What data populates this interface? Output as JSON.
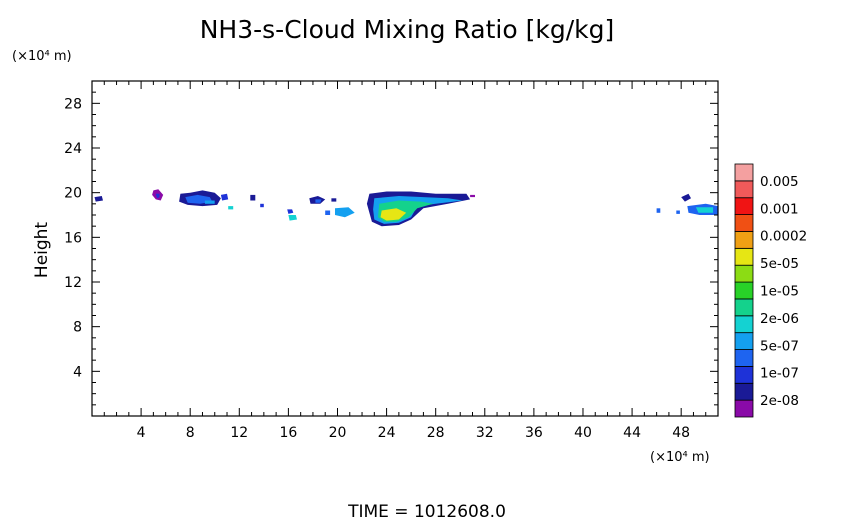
{
  "chart_data": {
    "type": "heatmap",
    "title": "NH3-s-Cloud Mixing Ratio [kg/kg]",
    "xlabel": "",
    "x_unit": "(×10⁴ m)",
    "ylabel": "Height",
    "y_unit": "(×10⁴ m)",
    "xlim": [
      0,
      51
    ],
    "ylim": [
      0,
      30
    ],
    "x_ticks": [
      4,
      8,
      12,
      16,
      20,
      24,
      28,
      32,
      36,
      40,
      44,
      48
    ],
    "y_ticks": [
      4,
      8,
      12,
      16,
      20,
      24,
      28
    ],
    "footer": "TIME =  1012608.0",
    "legend": {
      "position": "right",
      "colors": [
        "#8a0aa8",
        "#1a1a96",
        "#1e32d8",
        "#1e64f0",
        "#14a0f0",
        "#14d2d2",
        "#14d28c",
        "#28d228",
        "#8cdc14",
        "#e6e614",
        "#f0a014",
        "#f05014",
        "#f01414",
        "#f05a5a",
        "#f4a0a0"
      ],
      "labels": [
        "2e-08",
        "1e-07",
        "5e-07",
        "2e-06",
        "1e-05",
        "5e-05",
        "0.0002",
        "0.001",
        "0.005"
      ]
    },
    "regions": [
      {
        "points": [
          [
            0.2,
            19.6
          ],
          [
            0.8,
            19.7
          ],
          [
            0.9,
            19.3
          ],
          [
            0.3,
            19.2
          ]
        ],
        "level": 1
      },
      {
        "points": [
          [
            5.0,
            20.2
          ],
          [
            5.4,
            20.3
          ],
          [
            5.8,
            19.8
          ],
          [
            5.6,
            19.3
          ],
          [
            5.2,
            19.4
          ],
          [
            4.9,
            19.8
          ]
        ],
        "level": 0
      },
      {
        "points": [
          [
            5.2,
            19.9
          ],
          [
            5.5,
            19.9
          ],
          [
            5.5,
            19.6
          ],
          [
            5.3,
            19.5
          ]
        ],
        "level": 2
      },
      {
        "points": [
          [
            7.2,
            19.9
          ],
          [
            8.0,
            20.0
          ],
          [
            9.0,
            20.2
          ],
          [
            10.0,
            20.0
          ],
          [
            10.5,
            19.5
          ],
          [
            10.2,
            18.9
          ],
          [
            9.0,
            18.8
          ],
          [
            7.8,
            18.9
          ],
          [
            7.1,
            19.2
          ]
        ],
        "level": 1
      },
      {
        "points": [
          [
            7.6,
            19.6
          ],
          [
            8.6,
            19.8
          ],
          [
            9.6,
            19.6
          ],
          [
            9.8,
            19.2
          ],
          [
            8.8,
            19.0
          ],
          [
            7.8,
            19.1
          ]
        ],
        "level": 3
      },
      {
        "points": [
          [
            9.2,
            19.3
          ],
          [
            10.0,
            19.3
          ],
          [
            10.0,
            19.0
          ],
          [
            9.2,
            19.0
          ]
        ],
        "level": 4
      },
      {
        "points": [
          [
            10.5,
            19.8
          ],
          [
            11.0,
            19.9
          ],
          [
            11.1,
            19.4
          ],
          [
            10.6,
            19.3
          ]
        ],
        "level": 2
      },
      {
        "points": [
          [
            11.1,
            18.8
          ],
          [
            11.5,
            18.8
          ],
          [
            11.5,
            18.5
          ],
          [
            11.1,
            18.5
          ]
        ],
        "level": 5
      },
      {
        "points": [
          [
            12.9,
            19.8
          ],
          [
            13.3,
            19.8
          ],
          [
            13.3,
            19.3
          ],
          [
            12.9,
            19.3
          ]
        ],
        "level": 1
      },
      {
        "points": [
          [
            13.7,
            19.0
          ],
          [
            14.0,
            19.0
          ],
          [
            14.0,
            18.7
          ],
          [
            13.7,
            18.7
          ]
        ],
        "level": 2
      },
      {
        "points": [
          [
            15.9,
            18.5
          ],
          [
            16.3,
            18.5
          ],
          [
            16.4,
            18.2
          ],
          [
            16.0,
            18.1
          ]
        ],
        "level": 2
      },
      {
        "points": [
          [
            16.0,
            18.0
          ],
          [
            16.6,
            18.0
          ],
          [
            16.7,
            17.6
          ],
          [
            16.1,
            17.5
          ]
        ],
        "level": 5
      },
      {
        "points": [
          [
            17.7,
            19.5
          ],
          [
            18.4,
            19.7
          ],
          [
            19.0,
            19.4
          ],
          [
            18.6,
            19.0
          ],
          [
            17.8,
            19.0
          ]
        ],
        "level": 1
      },
      {
        "points": [
          [
            18.2,
            19.4
          ],
          [
            18.7,
            19.4
          ],
          [
            18.6,
            19.1
          ],
          [
            18.2,
            19.1
          ]
        ],
        "level": 3
      },
      {
        "points": [
          [
            19.5,
            19.5
          ],
          [
            19.9,
            19.5
          ],
          [
            19.9,
            19.2
          ],
          [
            19.5,
            19.2
          ]
        ],
        "level": 1
      },
      {
        "points": [
          [
            19.8,
            18.6
          ],
          [
            20.9,
            18.7
          ],
          [
            21.4,
            18.2
          ],
          [
            20.6,
            17.8
          ],
          [
            19.8,
            18.0
          ]
        ],
        "level": 4
      },
      {
        "points": [
          [
            19.0,
            18.4
          ],
          [
            19.4,
            18.4
          ],
          [
            19.4,
            18.0
          ],
          [
            19.0,
            18.0
          ]
        ],
        "level": 3
      },
      {
        "points": [
          [
            22.6,
            19.9
          ],
          [
            24.0,
            20.1
          ],
          [
            26.0,
            20.1
          ],
          [
            28.0,
            19.9
          ],
          [
            30.5,
            19.9
          ],
          [
            30.8,
            19.4
          ],
          [
            29.0,
            19.0
          ],
          [
            27.0,
            18.6
          ],
          [
            26.0,
            17.6
          ],
          [
            25.0,
            17.1
          ],
          [
            23.6,
            17.0
          ],
          [
            22.8,
            17.4
          ],
          [
            22.6,
            18.2
          ],
          [
            22.4,
            19.0
          ]
        ],
        "level": 1
      },
      {
        "points": [
          [
            23.0,
            19.5
          ],
          [
            25.0,
            19.7
          ],
          [
            27.0,
            19.6
          ],
          [
            29.0,
            19.5
          ],
          [
            30.2,
            19.3
          ],
          [
            28.0,
            19.0
          ],
          [
            26.5,
            18.8
          ],
          [
            26.0,
            17.8
          ],
          [
            25.0,
            17.3
          ],
          [
            23.8,
            17.2
          ],
          [
            23.0,
            17.6
          ],
          [
            22.9,
            18.5
          ]
        ],
        "level": 4
      },
      {
        "points": [
          [
            23.4,
            19.0
          ],
          [
            25.0,
            19.3
          ],
          [
            26.8,
            19.2
          ],
          [
            27.8,
            19.0
          ],
          [
            26.5,
            18.6
          ],
          [
            25.8,
            17.8
          ],
          [
            24.8,
            17.4
          ],
          [
            23.8,
            17.4
          ],
          [
            23.3,
            17.8
          ]
        ],
        "level": 6
      },
      {
        "points": [
          [
            23.6,
            18.4
          ],
          [
            24.8,
            18.6
          ],
          [
            25.6,
            18.2
          ],
          [
            25.0,
            17.6
          ],
          [
            24.0,
            17.5
          ],
          [
            23.5,
            17.8
          ]
        ],
        "level": 9
      },
      {
        "points": [
          [
            30.8,
            19.8
          ],
          [
            31.2,
            19.8
          ],
          [
            31.2,
            19.6
          ],
          [
            30.8,
            19.6
          ]
        ],
        "level": 0
      },
      {
        "points": [
          [
            46.0,
            18.6
          ],
          [
            46.3,
            18.6
          ],
          [
            46.3,
            18.2
          ],
          [
            46.0,
            18.2
          ]
        ],
        "level": 3
      },
      {
        "points": [
          [
            47.6,
            18.4
          ],
          [
            47.9,
            18.4
          ],
          [
            47.9,
            18.1
          ],
          [
            47.6,
            18.1
          ]
        ],
        "level": 3
      },
      {
        "points": [
          [
            48.0,
            19.6
          ],
          [
            48.6,
            19.9
          ],
          [
            48.8,
            19.5
          ],
          [
            48.3,
            19.2
          ]
        ],
        "level": 1
      },
      {
        "points": [
          [
            48.5,
            18.8
          ],
          [
            50.0,
            19.0
          ],
          [
            51.0,
            18.8
          ],
          [
            51.0,
            18.0
          ],
          [
            49.5,
            18.0
          ],
          [
            48.6,
            18.2
          ]
        ],
        "level": 3
      },
      {
        "points": [
          [
            49.2,
            18.7
          ],
          [
            50.6,
            18.7
          ],
          [
            50.6,
            18.2
          ],
          [
            49.4,
            18.2
          ]
        ],
        "level": 5
      }
    ]
  }
}
